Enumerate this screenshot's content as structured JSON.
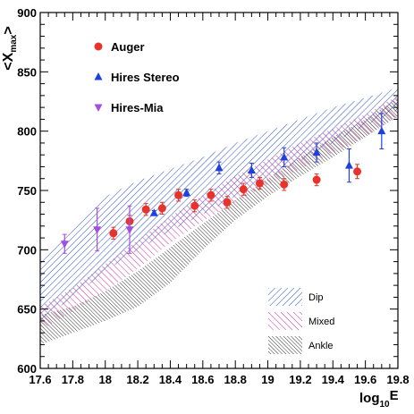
{
  "chart_data": {
    "type": "scatter",
    "xlabel_main": "log",
    "xlabel_sub": "10",
    "xlabel_tail": "E",
    "ylabel_main": "<X",
    "ylabel_sub": "max",
    "ylabel_tail": ">",
    "xlim": [
      17.6,
      19.8
    ],
    "ylim": [
      600,
      900
    ],
    "x_ticks": [
      "17.6",
      "17.8",
      "18",
      "18.2",
      "18.4",
      "18.6",
      "18.8",
      "19",
      "19.2",
      "19.4",
      "19.6",
      "19.8"
    ],
    "y_ticks": [
      "600",
      "650",
      "700",
      "750",
      "800",
      "850",
      "900"
    ],
    "series": [
      {
        "name": "Auger",
        "marker": "circle",
        "color": "#e8332a",
        "points": [
          {
            "x": 18.05,
            "y": 714,
            "yerr": 5
          },
          {
            "x": 18.15,
            "y": 724,
            "yerr": 5
          },
          {
            "x": 18.25,
            "y": 734,
            "yerr": 5
          },
          {
            "x": 18.35,
            "y": 735,
            "yerr": 5
          },
          {
            "x": 18.45,
            "y": 746,
            "yerr": 5
          },
          {
            "x": 18.55,
            "y": 737,
            "yerr": 5
          },
          {
            "x": 18.65,
            "y": 746,
            "yerr": 5
          },
          {
            "x": 18.75,
            "y": 740,
            "yerr": 5
          },
          {
            "x": 18.85,
            "y": 751,
            "yerr": 5
          },
          {
            "x": 18.95,
            "y": 756,
            "yerr": 5
          },
          {
            "x": 19.1,
            "y": 755,
            "yerr": 5
          },
          {
            "x": 19.3,
            "y": 759,
            "yerr": 5
          },
          {
            "x": 19.55,
            "y": 766,
            "yerr": 6
          }
        ]
      },
      {
        "name": "Hires Stereo",
        "marker": "triangle-up",
        "color": "#1f3fe0",
        "points": [
          {
            "x": 18.3,
            "y": 731,
            "yerr": 2
          },
          {
            "x": 18.5,
            "y": 748,
            "yerr": 3
          },
          {
            "x": 18.7,
            "y": 769,
            "yerr": 5
          },
          {
            "x": 18.9,
            "y": 767,
            "yerr": 6
          },
          {
            "x": 19.1,
            "y": 778,
            "yerr": 8
          },
          {
            "x": 19.3,
            "y": 782,
            "yerr": 8
          },
          {
            "x": 19.5,
            "y": 771,
            "yerr": 14
          },
          {
            "x": 19.7,
            "y": 800,
            "yerr": 15
          }
        ]
      },
      {
        "name": "Hires-Mia",
        "marker": "triangle-down",
        "color": "#a24fe0",
        "points": [
          {
            "x": 17.75,
            "y": 705,
            "yerr": 8
          },
          {
            "x": 17.95,
            "y": 717,
            "yerr": 18
          },
          {
            "x": 18.15,
            "y": 717,
            "yerr": 20
          }
        ]
      }
    ],
    "bands": [
      {
        "name": "Dip",
        "color": "#2a4fc8",
        "x": [
          17.6,
          17.8,
          18.0,
          18.2,
          18.4,
          18.6,
          18.8,
          19.0,
          19.2,
          19.4,
          19.6,
          19.8
        ],
        "upper": [
          690,
          720,
          745,
          758,
          768,
          778,
          790,
          800,
          810,
          820,
          828,
          837
        ],
        "lower": [
          640,
          660,
          682,
          700,
          716,
          730,
          745,
          760,
          775,
          790,
          805,
          818
        ]
      },
      {
        "name": "Mixed",
        "color": "#d0309c",
        "x": [
          17.6,
          17.8,
          18.0,
          18.2,
          18.4,
          18.6,
          18.8,
          19.0,
          19.2,
          19.4,
          19.6,
          19.8
        ],
        "upper": [
          652,
          668,
          688,
          708,
          728,
          746,
          762,
          776,
          790,
          802,
          814,
          830
        ],
        "lower": [
          632,
          648,
          665,
          684,
          706,
          724,
          740,
          755,
          768,
          782,
          795,
          812
        ]
      },
      {
        "name": "Ankle",
        "color": "#333333",
        "x": [
          17.6,
          17.8,
          18.0,
          18.2,
          18.4,
          18.6,
          18.8,
          19.0,
          19.2,
          19.4,
          19.6,
          19.8
        ],
        "upper": [
          645,
          652,
          665,
          682,
          702,
          722,
          742,
          760,
          778,
          795,
          810,
          828
        ],
        "lower": [
          620,
          630,
          640,
          652,
          672,
          700,
          725,
          745,
          762,
          778,
          795,
          813
        ]
      }
    ],
    "legend_position": "top-left",
    "band_legend_position": "bottom-right",
    "grid": false
  }
}
